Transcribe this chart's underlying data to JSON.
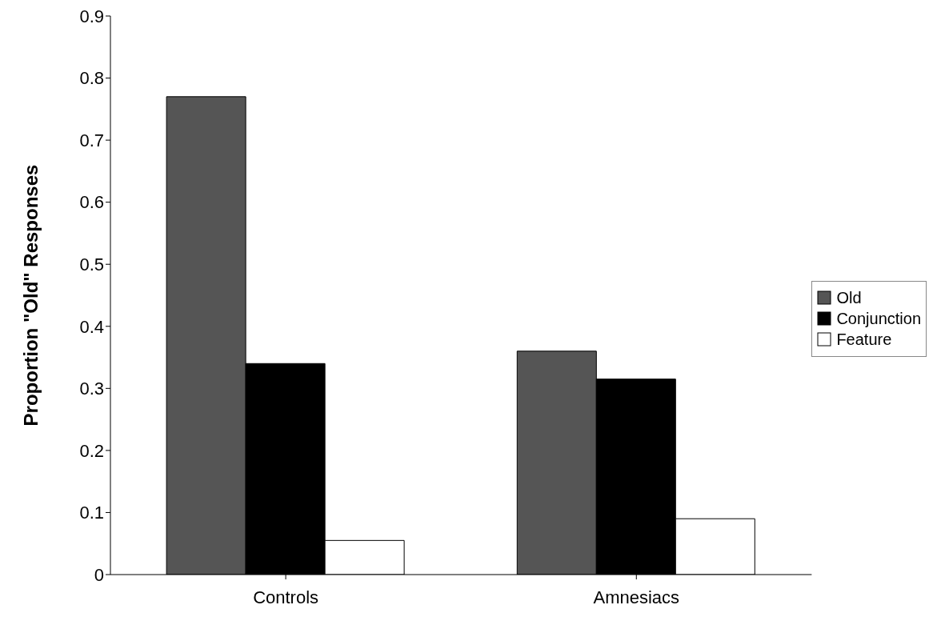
{
  "chart_data": {
    "type": "bar",
    "ylabel": "Proportion \"Old\" Responses",
    "categories": [
      "Controls",
      "Amnesiacs"
    ],
    "series": [
      {
        "name": "Old",
        "color": "#555555",
        "values": [
          0.77,
          0.36
        ]
      },
      {
        "name": "Conjunction",
        "color": "#000000",
        "values": [
          0.34,
          0.315
        ]
      },
      {
        "name": "Feature",
        "color": "#ffffff",
        "values": [
          0.055,
          0.09
        ]
      }
    ],
    "ylim": [
      0,
      0.9
    ],
    "yticks": [
      0,
      0.1,
      0.2,
      0.3,
      0.4,
      0.5,
      0.6,
      0.7,
      0.8,
      0.9
    ],
    "legend": "right"
  }
}
